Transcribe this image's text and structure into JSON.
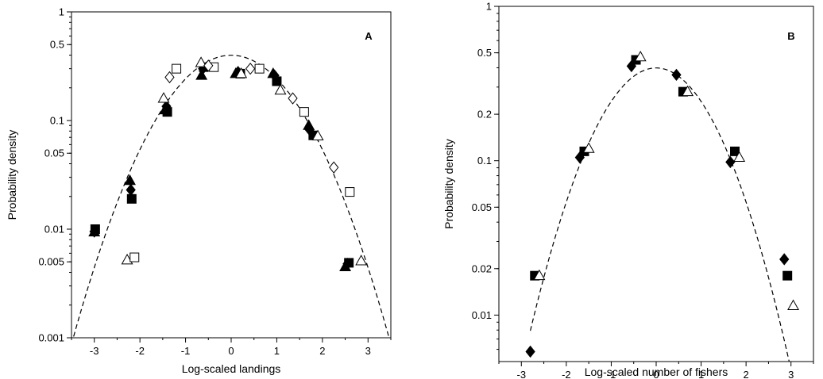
{
  "chart_data": [
    {
      "type": "scatter",
      "panel_label": "A",
      "xlabel": "Log-scaled landings",
      "ylabel": "Probability density",
      "y_scale": "log",
      "xlim": [
        -3.5,
        3.5
      ],
      "ylim": [
        0.001,
        1
      ],
      "x_ticks": [
        -3,
        -2,
        -1,
        0,
        1,
        2,
        3
      ],
      "x_tick_labels": [
        "-3",
        "-2",
        "-1",
        "0",
        "1",
        "2",
        "3"
      ],
      "y_ticks": [
        0.001,
        0.005,
        0.01,
        0.05,
        0.1,
        0.5,
        1
      ],
      "y_tick_labels": [
        "0.001",
        "0.005",
        "0.01",
        "0.05",
        "0.1",
        "0.5",
        "1"
      ],
      "grid": false,
      "curve": {
        "style": "dashed",
        "x_start": -3.5,
        "x_end": 3.5,
        "peak_y": 0.4
      },
      "series": [
        {
          "marker": "filled-diamond",
          "points": [
            [
              -3.0,
              0.0095
            ],
            [
              -2.2,
              0.023
            ],
            [
              -1.42,
              0.135
            ],
            [
              -0.62,
              0.3
            ],
            [
              0.15,
              0.28
            ],
            [
              0.95,
              0.26
            ],
            [
              1.72,
              0.082
            ],
            [
              2.55,
              0.0048
            ]
          ]
        },
        {
          "marker": "filled-triangle",
          "points": [
            [
              -3.0,
              0.0094
            ],
            [
              -2.22,
              0.028
            ],
            [
              -1.45,
              0.125
            ],
            [
              -0.65,
              0.26
            ],
            [
              0.1,
              0.27
            ],
            [
              0.92,
              0.27
            ],
            [
              1.7,
              0.09
            ],
            [
              2.5,
              0.0045
            ]
          ]
        },
        {
          "marker": "filled-square",
          "points": [
            [
              -2.98,
              0.01
            ],
            [
              -2.18,
              0.019
            ],
            [
              -1.4,
              0.12
            ],
            [
              -0.6,
              0.31
            ],
            [
              0.2,
              0.27
            ],
            [
              1.0,
              0.23
            ],
            [
              1.8,
              0.073
            ],
            [
              2.58,
              0.0049
            ]
          ]
        },
        {
          "marker": "open-triangle",
          "points": [
            [
              -2.28,
              0.0052
            ],
            [
              -1.48,
              0.16
            ],
            [
              -0.66,
              0.34
            ],
            [
              0.22,
              0.27
            ],
            [
              1.08,
              0.19
            ],
            [
              1.9,
              0.072
            ],
            [
              2.85,
              0.0051
            ]
          ]
        },
        {
          "marker": "open-square",
          "points": [
            [
              -2.12,
              0.0055
            ],
            [
              -1.2,
              0.3
            ],
            [
              -0.38,
              0.31
            ],
            [
              0.62,
              0.3
            ],
            [
              1.6,
              0.12
            ],
            [
              2.6,
              0.022
            ]
          ]
        },
        {
          "marker": "open-diamond",
          "points": [
            [
              -1.35,
              0.25
            ],
            [
              -0.5,
              0.32
            ],
            [
              0.42,
              0.3
            ],
            [
              1.35,
              0.16
            ],
            [
              2.25,
              0.037
            ]
          ]
        }
      ]
    },
    {
      "type": "scatter",
      "panel_label": "B",
      "xlabel": "Log-scaled number of fishers",
      "ylabel": "Probability density",
      "y_scale": "log",
      "xlim": [
        -3.5,
        3.5
      ],
      "ylim": [
        0.005,
        1
      ],
      "x_ticks": [
        -3,
        -2,
        -1,
        0,
        1,
        2,
        3
      ],
      "x_tick_labels": [
        "-3",
        "-2",
        "-1",
        "0",
        "1",
        "2",
        "3"
      ],
      "y_ticks": [
        0.01,
        0.02,
        0.05,
        0.1,
        0.2,
        0.5,
        1
      ],
      "y_tick_labels": [
        "0.01",
        "0.02",
        "0.05",
        "0.1",
        "0.2",
        "0.5",
        "1"
      ],
      "grid": false,
      "curve": {
        "style": "dashed",
        "x_start": -2.8,
        "x_end": 3.0,
        "peak_y": 0.4
      },
      "series": [
        {
          "marker": "filled-diamond",
          "points": [
            [
              -2.8,
              0.0058
            ],
            [
              -1.7,
              0.105
            ],
            [
              -0.55,
              0.41
            ],
            [
              0.45,
              0.36
            ],
            [
              1.65,
              0.098
            ],
            [
              2.85,
              0.023
            ]
          ]
        },
        {
          "marker": "filled-square",
          "points": [
            [
              -2.7,
              0.018
            ],
            [
              -1.6,
              0.115
            ],
            [
              -0.45,
              0.45
            ],
            [
              0.6,
              0.28
            ],
            [
              1.75,
              0.115
            ],
            [
              2.92,
              0.018
            ]
          ]
        },
        {
          "marker": "open-triangle",
          "points": [
            [
              -2.6,
              0.018
            ],
            [
              -1.5,
              0.12
            ],
            [
              -0.35,
              0.47
            ],
            [
              0.7,
              0.28
            ],
            [
              1.85,
              0.105
            ],
            [
              3.05,
              0.0115
            ]
          ]
        }
      ]
    }
  ]
}
